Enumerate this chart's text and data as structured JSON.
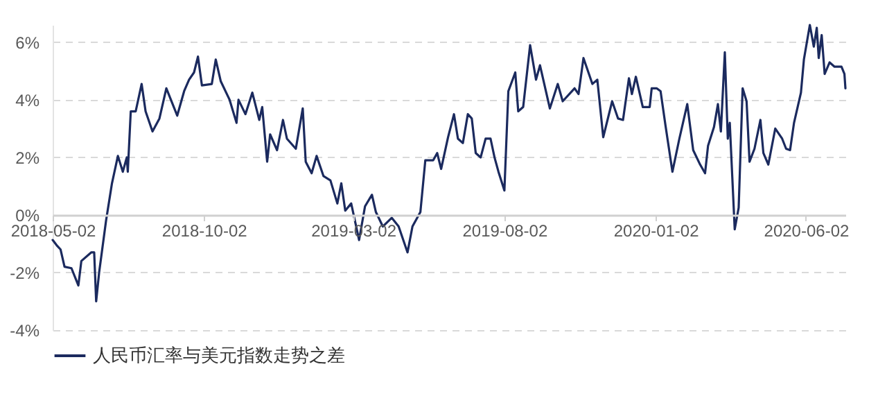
{
  "chart_data": {
    "type": "line",
    "x": [
      "2018-05-02",
      "2018-05-06",
      "2018-05-10",
      "2018-05-14",
      "2018-05-21",
      "2018-05-28",
      "2018-05-31",
      "2018-06-10",
      "2018-06-13",
      "2018-06-15",
      "2018-06-18",
      "2018-06-25",
      "2018-07-01",
      "2018-07-07",
      "2018-07-12",
      "2018-07-16",
      "2018-07-17",
      "2018-07-20",
      "2018-07-25",
      "2018-07-31",
      "2018-08-04",
      "2018-08-11",
      "2018-08-18",
      "2018-08-25",
      "2018-09-05",
      "2018-09-12",
      "2018-09-17",
      "2018-09-22",
      "2018-09-26",
      "2018-09-30",
      "2018-10-10",
      "2018-10-14",
      "2018-10-19",
      "2018-10-28",
      "2018-11-04",
      "2018-11-06",
      "2018-11-13",
      "2018-11-20",
      "2018-11-27",
      "2018-11-30",
      "2018-12-05",
      "2018-12-08",
      "2018-12-15",
      "2018-12-21",
      "2018-12-25",
      "2019-01-03",
      "2019-01-10",
      "2019-01-13",
      "2019-01-19",
      "2019-01-24",
      "2019-01-31",
      "2019-02-07",
      "2019-02-14",
      "2019-02-18",
      "2019-02-22",
      "2019-02-28",
      "2019-03-08",
      "2019-03-14",
      "2019-03-21",
      "2019-03-25",
      "2019-04-01",
      "2019-04-10",
      "2019-04-17",
      "2019-04-26",
      "2019-05-01",
      "2019-05-09",
      "2019-05-14",
      "2019-05-22",
      "2019-05-26",
      "2019-05-30",
      "2019-06-06",
      "2019-06-12",
      "2019-06-16",
      "2019-06-21",
      "2019-06-26",
      "2019-06-30",
      "2019-07-04",
      "2019-07-09",
      "2019-07-14",
      "2019-07-19",
      "2019-07-23",
      "2019-07-27",
      "2019-08-02",
      "2019-08-06",
      "2019-08-13",
      "2019-08-16",
      "2019-08-21",
      "2019-08-28",
      "2019-09-03",
      "2019-09-07",
      "2019-09-17",
      "2019-09-25",
      "2019-09-30",
      "2019-10-12",
      "2019-10-16",
      "2019-10-21",
      "2019-10-30",
      "2019-11-04",
      "2019-11-10",
      "2019-11-19",
      "2019-11-25",
      "2019-11-30",
      "2019-12-06",
      "2019-12-09",
      "2019-12-13",
      "2019-12-20",
      "2019-12-27",
      "2019-12-29",
      "2020-01-03",
      "2020-01-07",
      "2020-01-12",
      "2020-01-19",
      "2020-01-26",
      "2020-02-03",
      "2020-02-09",
      "2020-02-16",
      "2020-02-21",
      "2020-02-24",
      "2020-03-01",
      "2020-03-05",
      "2020-03-08",
      "2020-03-12",
      "2020-03-15",
      "2020-03-17",
      "2020-03-22",
      "2020-03-26",
      "2020-03-30",
      "2020-04-03",
      "2020-04-06",
      "2020-04-11",
      "2020-04-17",
      "2020-04-20",
      "2020-04-25",
      "2020-05-02",
      "2020-05-09",
      "2020-05-13",
      "2020-05-17",
      "2020-05-21",
      "2020-05-28",
      "2020-05-31",
      "2020-06-06",
      "2020-06-10",
      "2020-06-13",
      "2020-06-15",
      "2020-06-18",
      "2020-06-21",
      "2020-06-26",
      "2020-07-01",
      "2020-07-08",
      "2020-07-11",
      "2020-07-12"
    ],
    "series": [
      {
        "name": "人民币汇率与美元指数走势之差",
        "color": "#1b2a5e",
        "values": [
          -0.87,
          -1.05,
          -1.2,
          -1.8,
          -1.85,
          -2.45,
          -1.6,
          -1.3,
          -1.3,
          -3.0,
          -2.0,
          -0.2,
          1.1,
          2.05,
          1.5,
          2.0,
          1.5,
          3.6,
          3.6,
          4.55,
          3.6,
          2.9,
          3.35,
          4.4,
          3.45,
          4.3,
          4.7,
          4.95,
          5.5,
          4.5,
          4.55,
          5.4,
          4.65,
          4.0,
          3.2,
          4.0,
          3.5,
          4.25,
          3.3,
          3.75,
          1.85,
          2.8,
          2.25,
          3.3,
          2.65,
          2.3,
          3.7,
          1.85,
          1.45,
          2.05,
          1.35,
          1.2,
          0.4,
          1.1,
          0.15,
          0.4,
          -0.87,
          0.3,
          0.7,
          0.1,
          -0.4,
          -0.1,
          -0.4,
          -1.3,
          -0.4,
          0.1,
          1.9,
          1.9,
          2.15,
          1.6,
          2.7,
          3.5,
          2.65,
          2.5,
          3.5,
          3.35,
          2.15,
          2.0,
          2.65,
          2.65,
          2.0,
          1.5,
          0.85,
          4.3,
          4.95,
          3.6,
          3.75,
          5.9,
          4.7,
          5.2,
          3.7,
          4.55,
          3.95,
          4.4,
          4.2,
          5.45,
          4.55,
          4.7,
          2.7,
          3.95,
          3.35,
          3.3,
          4.75,
          4.2,
          4.8,
          3.75,
          3.75,
          4.4,
          4.4,
          4.3,
          3.1,
          1.5,
          2.65,
          3.85,
          2.25,
          1.75,
          1.45,
          2.4,
          3.05,
          3.85,
          2.9,
          5.65,
          2.65,
          3.2,
          -0.5,
          0.25,
          4.4,
          3.95,
          1.85,
          2.3,
          3.3,
          2.15,
          1.75,
          3.0,
          2.65,
          2.3,
          2.25,
          3.2,
          4.25,
          5.4,
          6.6,
          5.85,
          6.5,
          5.45,
          6.25,
          4.9,
          5.3,
          5.15,
          5.15,
          4.9,
          4.4
        ]
      }
    ],
    "xlim": [
      "2018-05-02",
      "2020-07-12"
    ],
    "xticks": [
      "2018-05-02",
      "2018-10-02",
      "2019-03-02",
      "2019-08-02",
      "2020-01-02",
      "2020-06-02"
    ],
    "ylim": [
      -4,
      6.6
    ],
    "yticks": [
      {
        "value": -4,
        "label": "-4%"
      },
      {
        "value": -2,
        "label": "-2%"
      },
      {
        "value": 0,
        "label": "0%"
      },
      {
        "value": 2,
        "label": "2%"
      },
      {
        "value": 4,
        "label": "4%"
      },
      {
        "value": 6,
        "label": "6%"
      }
    ],
    "grid": "y",
    "legend": "bottom",
    "line_style": "solid",
    "marker": "none"
  }
}
